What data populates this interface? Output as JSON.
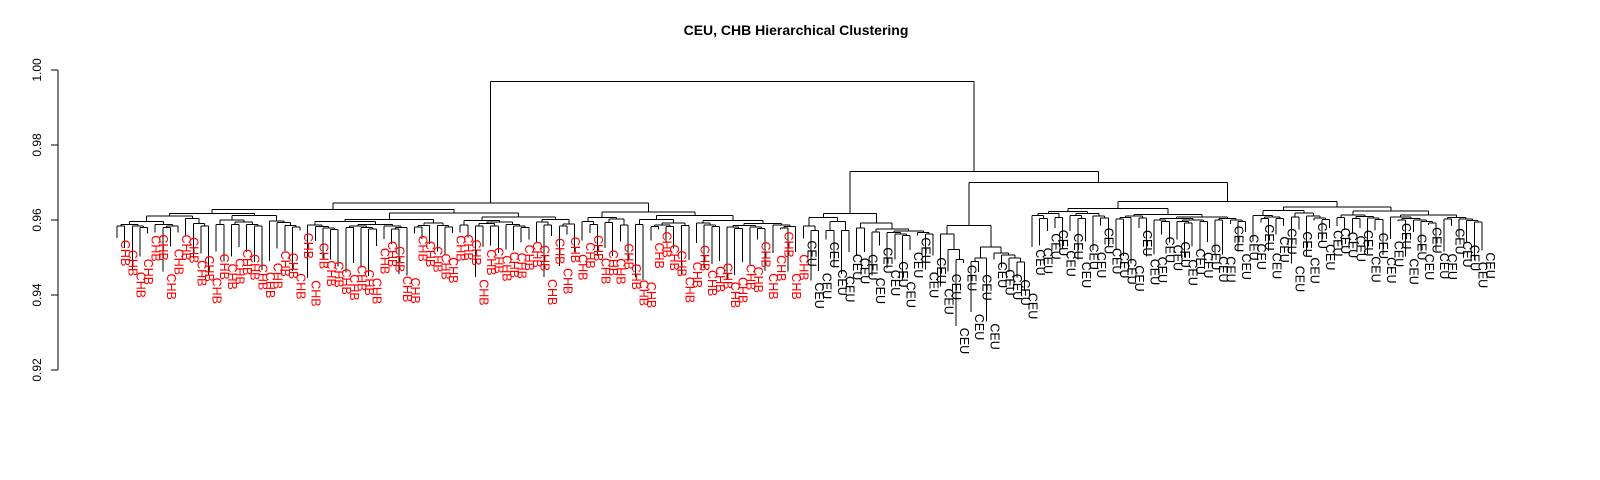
{
  "chart_data": {
    "type": "dendrogram",
    "title": "CEU, CHB Hierarchical Clustering",
    "ylabel": "",
    "xlabel": "",
    "ylim": [
      0.92,
      1.0
    ],
    "yticks": [
      0.92,
      0.94,
      0.96,
      0.98,
      1.0
    ],
    "ytick_labels": [
      "0.92",
      "0.94",
      "0.96",
      "0.98",
      "1.00"
    ],
    "root_height": 0.997,
    "groups": [
      {
        "name": "CHB",
        "color": "#ff0000",
        "leaf_count": 90,
        "merge_height": 0.9645
      },
      {
        "name": "CEU",
        "color": "#000000",
        "leaf_count": 90,
        "merge_height": 0.9665
      }
    ],
    "ceu_subclusters": [
      {
        "leaf_count": 18,
        "merge_height": 0.9618
      },
      {
        "leaf_count": 12,
        "merge_height": 0.9585
      },
      {
        "leaf_count": 60,
        "merge_height": 0.965
      }
    ],
    "ceu_subcluster_joins": [
      0.97,
      0.973
    ],
    "colors": {
      "CHB": "#ff0000",
      "CEU": "#000000",
      "branch": "#000000"
    }
  }
}
